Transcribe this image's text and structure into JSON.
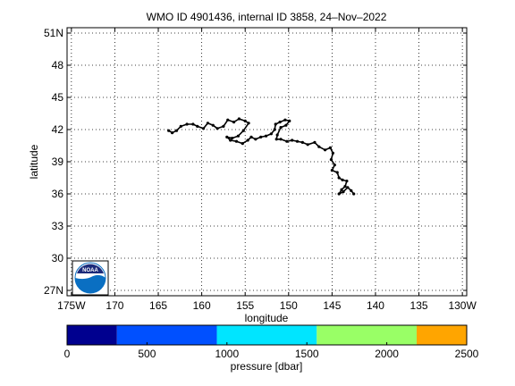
{
  "chart_data": {
    "type": "scatter",
    "title": "WMO ID 4901436, internal ID 3858, 24–Nov–2022",
    "xlabel": "longitude",
    "ylabel": "latitude",
    "xlim": [
      -175.5,
      -129.5
    ],
    "ylim": [
      26.5,
      51.5
    ],
    "grid": true,
    "x_ticks": [
      {
        "value": -175,
        "label": "175W"
      },
      {
        "value": -170,
        "label": "170"
      },
      {
        "value": -165,
        "label": "165"
      },
      {
        "value": -160,
        "label": "160"
      },
      {
        "value": -155,
        "label": "155"
      },
      {
        "value": -150,
        "label": "150"
      },
      {
        "value": -145,
        "label": "145"
      },
      {
        "value": -140,
        "label": "140"
      },
      {
        "value": -135,
        "label": "135"
      },
      {
        "value": -130,
        "label": "130W"
      }
    ],
    "y_ticks": [
      {
        "value": 27,
        "label": "27N"
      },
      {
        "value": 30,
        "label": "30"
      },
      {
        "value": 33,
        "label": "33"
      },
      {
        "value": 36,
        "label": "36"
      },
      {
        "value": 39,
        "label": "39"
      },
      {
        "value": 42,
        "label": "42"
      },
      {
        "value": 45,
        "label": "45"
      },
      {
        "value": 48,
        "label": "48"
      },
      {
        "value": 51,
        "label": "51N"
      }
    ],
    "track": [
      [
        -163.8,
        41.9
      ],
      [
        -163.4,
        41.7
      ],
      [
        -162.9,
        41.9
      ],
      [
        -162.4,
        42.3
      ],
      [
        -161.7,
        42.5
      ],
      [
        -161.0,
        42.5
      ],
      [
        -160.5,
        42.3
      ],
      [
        -159.8,
        42.1
      ],
      [
        -159.3,
        42.6
      ],
      [
        -158.7,
        42.4
      ],
      [
        -158.2,
        42.1
      ],
      [
        -157.5,
        42.3
      ],
      [
        -157.0,
        42.9
      ],
      [
        -156.3,
        42.7
      ],
      [
        -155.7,
        43.0
      ],
      [
        -155.0,
        42.8
      ],
      [
        -154.6,
        42.6
      ],
      [
        -155.2,
        41.9
      ],
      [
        -155.8,
        41.4
      ],
      [
        -156.5,
        41.2
      ],
      [
        -157.1,
        41.3
      ],
      [
        -156.7,
        41.0
      ],
      [
        -156.0,
        40.9
      ],
      [
        -155.3,
        40.7
      ],
      [
        -154.7,
        41.0
      ],
      [
        -154.3,
        41.3
      ],
      [
        -153.8,
        41.1
      ],
      [
        -153.2,
        41.3
      ],
      [
        -152.6,
        41.4
      ],
      [
        -152.0,
        41.6
      ],
      [
        -151.6,
        42.0
      ],
      [
        -151.5,
        42.5
      ],
      [
        -151.0,
        42.7
      ],
      [
        -150.4,
        42.9
      ],
      [
        -149.9,
        42.8
      ],
      [
        -150.3,
        42.4
      ],
      [
        -150.9,
        42.2
      ],
      [
        -151.3,
        41.5
      ],
      [
        -151.4,
        41.1
      ],
      [
        -150.9,
        41.1
      ],
      [
        -150.2,
        40.9
      ],
      [
        -149.6,
        41.0
      ],
      [
        -149.0,
        40.9
      ],
      [
        -148.4,
        40.8
      ],
      [
        -147.8,
        40.6
      ],
      [
        -147.0,
        40.8
      ],
      [
        -146.5,
        40.4
      ],
      [
        -145.8,
        40.1
      ],
      [
        -145.2,
        40.3
      ],
      [
        -144.9,
        39.8
      ],
      [
        -145.1,
        39.2
      ],
      [
        -144.7,
        38.7
      ],
      [
        -145.0,
        38.2
      ],
      [
        -144.4,
        38.0
      ],
      [
        -144.2,
        37.5
      ],
      [
        -143.8,
        37.3
      ],
      [
        -143.3,
        37.2
      ],
      [
        -143.5,
        36.7
      ],
      [
        -143.9,
        36.4
      ],
      [
        -144.2,
        36.0
      ],
      [
        -143.7,
        36.2
      ],
      [
        -143.2,
        36.6
      ],
      [
        -142.8,
        36.3
      ],
      [
        -142.5,
        36.0
      ]
    ]
  },
  "colorbar": {
    "label": "pressure [dbar]",
    "min": 0,
    "max": 2500,
    "ticks": [
      {
        "value": 0,
        "label": "0"
      },
      {
        "value": 500,
        "label": "500"
      },
      {
        "value": 1000,
        "label": "1000"
      },
      {
        "value": 1500,
        "label": "1500"
      },
      {
        "value": 2000,
        "label": "2000"
      },
      {
        "value": 2500,
        "label": "2500"
      }
    ],
    "segments": [
      {
        "from": 0,
        "to": 312,
        "color": "#00008f"
      },
      {
        "from": 312,
        "to": 937,
        "color": "#0050ff"
      },
      {
        "from": 937,
        "to": 1562,
        "color": "#00e5ff"
      },
      {
        "from": 1562,
        "to": 2187,
        "color": "#99ff66"
      },
      {
        "from": 2187,
        "to": 2500,
        "color": "#ffa500"
      }
    ]
  },
  "logo": {
    "text": "NOAA",
    "icon": "noaa-logo-icon",
    "color": "#0a6fc2"
  }
}
